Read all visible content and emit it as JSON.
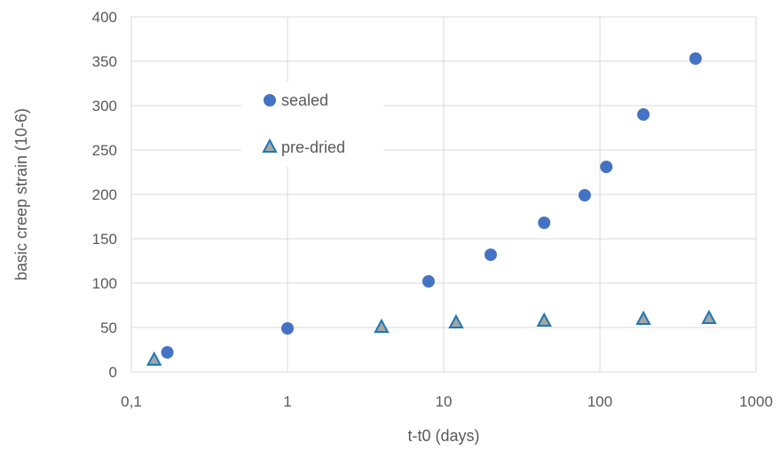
{
  "chart_data": {
    "type": "scatter",
    "xscale": "log",
    "xlim": [
      0.1,
      1000
    ],
    "ylim": [
      0,
      400
    ],
    "xlabel": "t-t0 (days)",
    "ylabel": "basic creep strain (10-6)",
    "grid": true,
    "legend": "upper-left inside plot",
    "x_ticks": [
      "0,1",
      "1",
      "10",
      "100",
      "1000"
    ],
    "y_ticks": [
      "0",
      "50",
      "100",
      "150",
      "200",
      "250",
      "300",
      "350",
      "400"
    ],
    "series": [
      {
        "name": "sealed",
        "marker": "circle",
        "color": "#4472C4",
        "points": [
          {
            "x": 0.17,
            "y": 22
          },
          {
            "x": 1.0,
            "y": 49
          },
          {
            "x": 8.0,
            "y": 102
          },
          {
            "x": 20.0,
            "y": 132
          },
          {
            "x": 44.0,
            "y": 168
          },
          {
            "x": 80.0,
            "y": 199
          },
          {
            "x": 110.0,
            "y": 231
          },
          {
            "x": 190.0,
            "y": 290
          },
          {
            "x": 410.0,
            "y": 353
          }
        ]
      },
      {
        "name": "pre-dried",
        "marker": "triangle",
        "color": "#A5A5A5",
        "edge_color": "#1F77B4",
        "points": [
          {
            "x": 0.14,
            "y": 14
          },
          {
            "x": 4.0,
            "y": 51
          },
          {
            "x": 12.0,
            "y": 56
          },
          {
            "x": 44.0,
            "y": 58
          },
          {
            "x": 190.0,
            "y": 60
          },
          {
            "x": 500.0,
            "y": 61
          }
        ]
      }
    ]
  }
}
